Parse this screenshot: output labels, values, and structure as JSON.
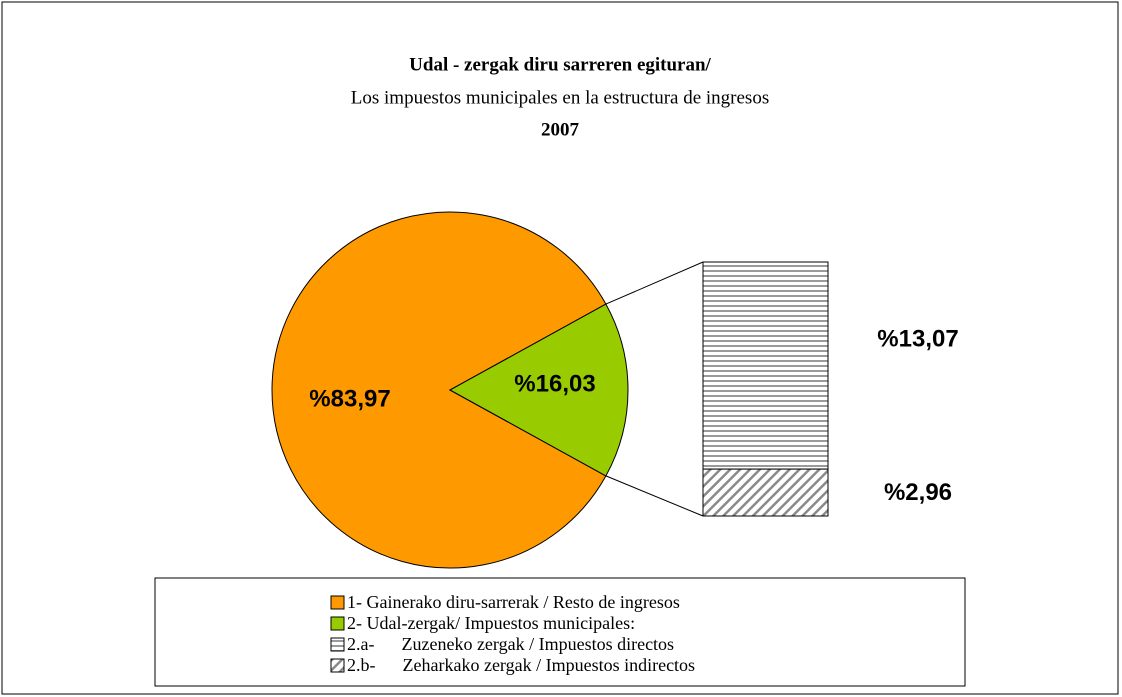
{
  "chart_data": {
    "type": "pie",
    "title": [
      "Udal - zergak  diru sarreren egituran/",
      "Los  impuestos municipales en la estructura de ingresos",
      "2007"
    ],
    "categories": [
      "1- Gainerako diru-sarrerak / Resto de ingresos",
      "2- Udal-zergak/ Impuestos municipales:"
    ],
    "values": [
      83.97,
      16.03
    ],
    "value_labels": [
      "%83,97",
      "%16,03"
    ],
    "colors": [
      "#ff9900",
      "#99cc00"
    ],
    "breakdown": {
      "categories": [
        "2.a-      Zuzeneko zergak / Impuestos directos",
        "2.b-      Zeharkako zergak / Impuestos indirectos"
      ],
      "values": [
        13.07,
        2.96
      ],
      "value_labels": [
        "%13,07",
        "%2,96"
      ],
      "patterns": [
        "horizontal",
        "diagonal"
      ]
    }
  }
}
